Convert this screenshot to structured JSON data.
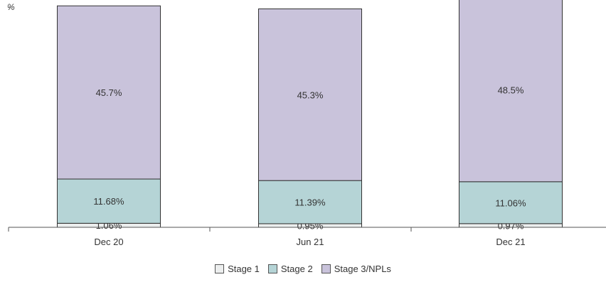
{
  "chart_data": {
    "type": "bar",
    "stacked": true,
    "unit_label": "%",
    "categories": [
      "Dec 20",
      "Jun 21",
      "Dec 21"
    ],
    "series": [
      {
        "name": "Stage 1",
        "color": "#eceeee",
        "values": [
          1.06,
          0.95,
          0.97
        ],
        "labels": [
          "1.06%",
          "0.95%",
          "0.97%"
        ]
      },
      {
        "name": "Stage 2",
        "color": "#b5d4d6",
        "values": [
          11.68,
          11.39,
          11.06
        ],
        "labels": [
          "11.68%",
          "11.39%",
          "11.06%"
        ]
      },
      {
        "name": "Stage 3/NPLs",
        "color": "#c9c3db",
        "values": [
          45.7,
          45.3,
          48.5
        ],
        "labels": [
          "45.7%",
          "45.3%",
          "48.5%"
        ]
      }
    ],
    "grid": false,
    "legend_position": "bottom"
  }
}
